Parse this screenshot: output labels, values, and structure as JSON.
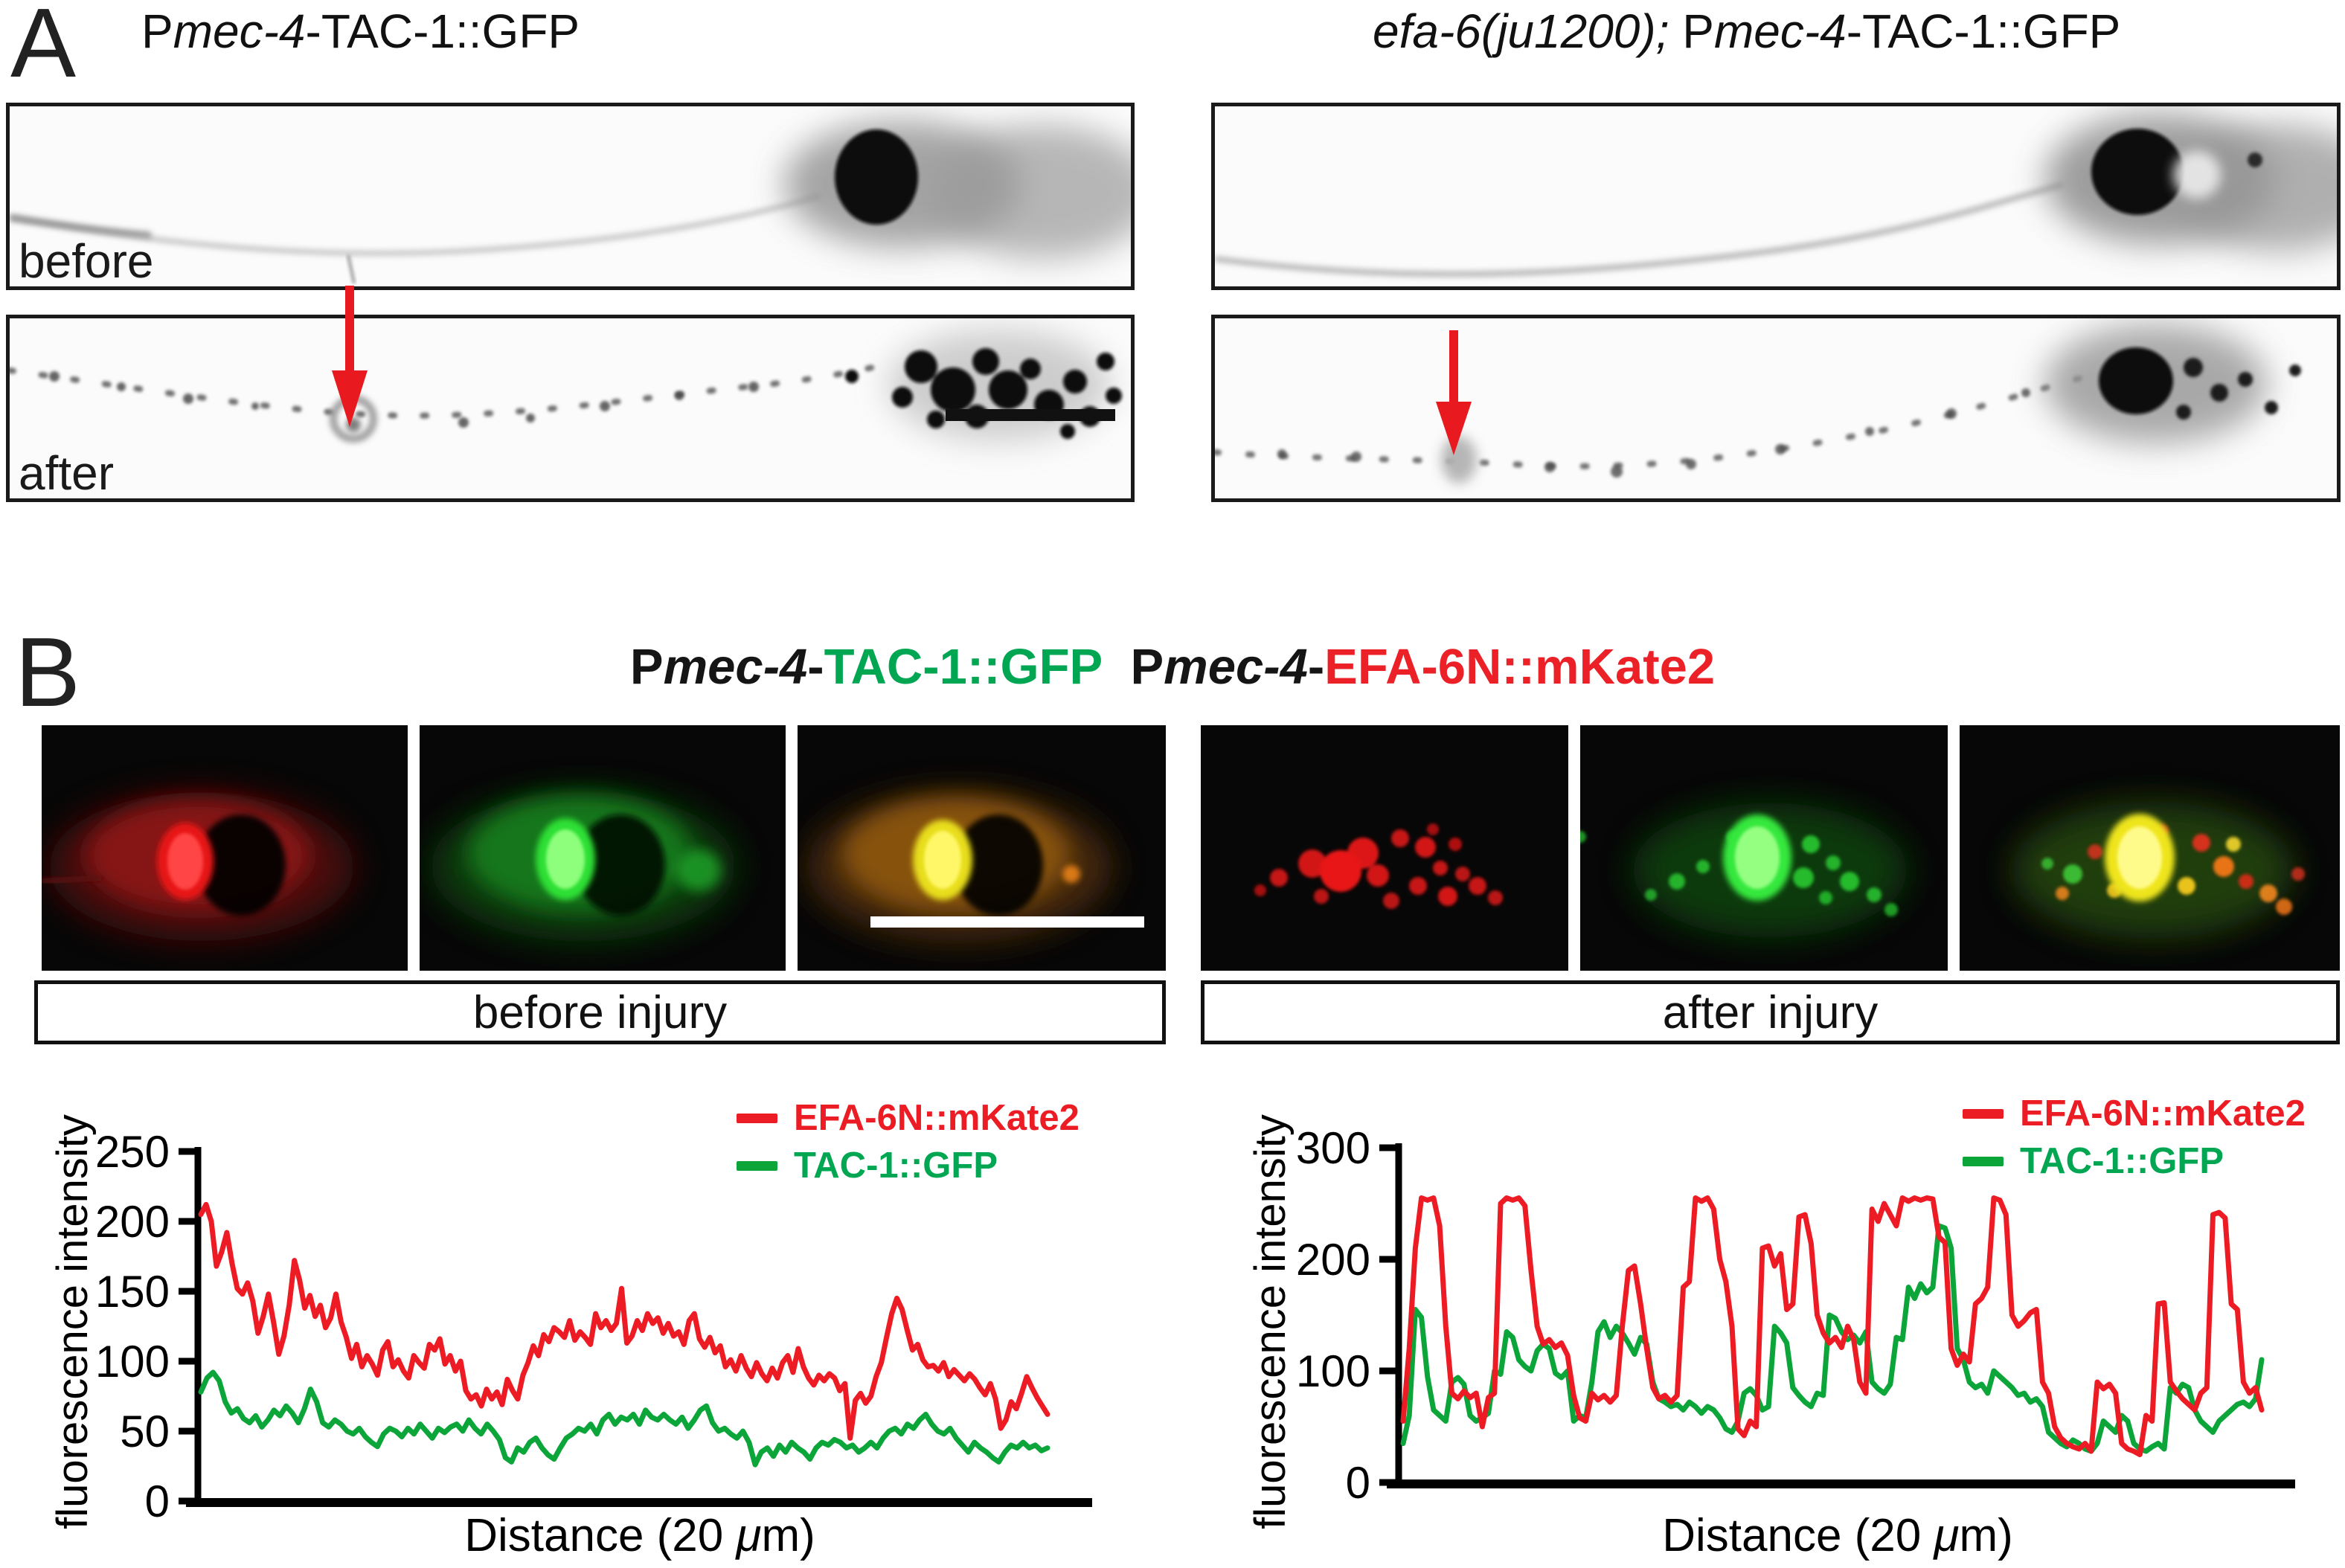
{
  "colors": {
    "accent_red": "#ec1c24",
    "accent_green": "#00a651",
    "arrow_red": "#e8191f",
    "chart_red": "#ed1c24",
    "chart_green": "#0ca53a"
  },
  "panel_a": {
    "label": "A",
    "title_left": {
      "p": "P",
      "gene": "mec-4",
      "rest": "-TAC-1::GFP"
    },
    "title_right": {
      "allele": "efa-6(ju1200);",
      "p": " P",
      "gene": "mec-4",
      "rest": "-TAC-1::GFP"
    },
    "before_label": "before",
    "after_label": "after"
  },
  "panel_b": {
    "label": "B",
    "header": {
      "p1": "P",
      "gene1": "mec-4",
      "dash1": "-",
      "gfp": "TAC-1::GFP",
      "gap": "  ",
      "p2": "P",
      "gene2": "mec-4",
      "dash2": "-",
      "mkate": "EFA-6N::mKate2"
    },
    "before_box": "before injury",
    "after_box": "after injury"
  },
  "chart_data": [
    {
      "type": "line",
      "title": "before injury line scan",
      "ylabel": "fluorescence intensity",
      "xlabel": "Distance (20 μm)",
      "xlabel_parts": {
        "pre": "Distance (20 ",
        "mu": "μ",
        "post": "m)"
      },
      "ylim": [
        0,
        250
      ],
      "yticks": [
        0,
        50,
        100,
        150,
        200,
        250
      ],
      "grid": false,
      "legend_position": "top-right",
      "legend": [
        {
          "label": "EFA-6N::mKate2",
          "color": "#ec1c24"
        },
        {
          "label": "TAC-1::GFP",
          "color": "#00a651"
        }
      ],
      "series": [
        {
          "name": "EFA-6N::mKate2",
          "color": "#ed1c24",
          "values": [
            205,
            212,
            200,
            168,
            178,
            192,
            170,
            152,
            148,
            156,
            143,
            120,
            132,
            148,
            128,
            105,
            118,
            140,
            172,
            158,
            138,
            147,
            132,
            140,
            124,
            131,
            148,
            128,
            117,
            102,
            112,
            96,
            104,
            98,
            90,
            108,
            114,
            96,
            101,
            93,
            88,
            104,
            99,
            95,
            112,
            108,
            116,
            98,
            104,
            93,
            100,
            79,
            73,
            76,
            68,
            80,
            73,
            78,
            69,
            87,
            79,
            73,
            90,
            99,
            111,
            104,
            119,
            114,
            124,
            121,
            117,
            129,
            115,
            121,
            117,
            112,
            134,
            124,
            129,
            122,
            127,
            152,
            113,
            118,
            129,
            122,
            134,
            127,
            131,
            120,
            127,
            118,
            121,
            112,
            129,
            134,
            116,
            110,
            117,
            106,
            111,
            96,
            101,
            93,
            104,
            95,
            89,
            99,
            91,
            86,
            95,
            88,
            99,
            104,
            92,
            109,
            96,
            88,
            83,
            90,
            86,
            91,
            88,
            79,
            84,
            45,
            72,
            77,
            70,
            75,
            89,
            99,
            117,
            134,
            145,
            137,
            122,
            108,
            112,
            101,
            96,
            97,
            93,
            99,
            89,
            94,
            90,
            86,
            91,
            87,
            81,
            76,
            84,
            73,
            52,
            58,
            71,
            66,
            77,
            89,
            81,
            74,
            68,
            62
          ]
        },
        {
          "name": "TAC-1::GFP",
          "color": "#0ca53a",
          "values": [
            78,
            88,
            92,
            86,
            71,
            63,
            66,
            59,
            56,
            61,
            53,
            58,
            65,
            61,
            68,
            63,
            56,
            66,
            80,
            71,
            56,
            53,
            58,
            55,
            50,
            48,
            52,
            46,
            42,
            39,
            48,
            52,
            50,
            46,
            52,
            48,
            55,
            50,
            45,
            52,
            49,
            53,
            55,
            50,
            58,
            52,
            48,
            55,
            50,
            44,
            31,
            28,
            38,
            35,
            42,
            45,
            38,
            33,
            30,
            38,
            45,
            48,
            52,
            50,
            55,
            48,
            58,
            62,
            55,
            60,
            58,
            62,
            55,
            65,
            60,
            58,
            62,
            58,
            55,
            60,
            52,
            58,
            65,
            68,
            56,
            50,
            52,
            48,
            45,
            50,
            42,
            26,
            35,
            38,
            32,
            40,
            35,
            42,
            38,
            35,
            30,
            38,
            42,
            40,
            44,
            42,
            38,
            40,
            35,
            38,
            42,
            38,
            45,
            50,
            52,
            48,
            55,
            52,
            58,
            62,
            55,
            50,
            48,
            52,
            45,
            40,
            35,
            42,
            38,
            35,
            31,
            28,
            35,
            40,
            38,
            42,
            38,
            40,
            36,
            38
          ]
        }
      ]
    },
    {
      "type": "line",
      "title": "after injury line scan",
      "ylabel": "fluorescence intensity",
      "xlabel": "Distance (20 μm)",
      "xlabel_parts": {
        "pre": "Distance (20 ",
        "mu": "μ",
        "post": "m)"
      },
      "ylim": [
        0,
        300
      ],
      "yticks": [
        0,
        100,
        200,
        300
      ],
      "grid": false,
      "legend_position": "top-right",
      "legend": [
        {
          "label": "EFA-6N::mKate2",
          "color": "#ec1c24"
        },
        {
          "label": "TAC-1::GFP",
          "color": "#00a651"
        }
      ],
      "series": [
        {
          "name": "EFA-6N::mKate2",
          "color": "#ed1c24",
          "values": [
            55,
            120,
            210,
            255,
            253,
            255,
            230,
            140,
            80,
            75,
            82,
            76,
            80,
            50,
            76,
            80,
            250,
            255,
            253,
            255,
            248,
            190,
            140,
            124,
            128,
            121,
            125,
            114,
            78,
            58,
            55,
            80,
            74,
            78,
            72,
            78,
            140,
            190,
            194,
            160,
            120,
            85,
            75,
            78,
            72,
            78,
            175,
            180,
            255,
            252,
            255,
            245,
            200,
            180,
            140,
            48,
            42,
            55,
            50,
            210,
            212,
            194,
            205,
            155,
            160,
            238,
            240,
            214,
            150,
            134,
            125,
            130,
            121,
            140,
            128,
            90,
            80,
            245,
            234,
            250,
            240,
            230,
            255,
            252,
            255,
            253,
            255,
            254,
            220,
            215,
            120,
            105,
            115,
            108,
            160,
            165,
            175,
            255,
            253,
            240,
            150,
            140,
            145,
            152,
            155,
            90,
            80,
            50,
            40,
            35,
            32,
            30,
            35,
            28,
            90,
            84,
            88,
            80,
            35,
            30,
            28,
            25,
            60,
            55,
            160,
            161,
            90,
            82,
            75,
            70,
            65,
            80,
            85,
            240,
            242,
            237,
            160,
            155,
            90,
            80,
            85,
            65
          ]
        },
        {
          "name": "TAC-1::GFP",
          "color": "#0ca53a",
          "values": [
            35,
            60,
            155,
            148,
            95,
            65,
            60,
            55,
            90,
            94,
            88,
            60,
            55,
            58,
            62,
            100,
            97,
            135,
            130,
            110,
            104,
            100,
            118,
            124,
            120,
            98,
            94,
            100,
            55,
            60,
            58,
            90,
            135,
            144,
            130,
            140,
            134,
            125,
            115,
            130,
            124,
            90,
            75,
            72,
            68,
            70,
            65,
            72,
            68,
            62,
            68,
            65,
            58,
            48,
            45,
            55,
            80,
            84,
            78,
            65,
            68,
            140,
            134,
            125,
            85,
            78,
            72,
            68,
            80,
            78,
            150,
            147,
            135,
            128,
            132,
            125,
            135,
            90,
            84,
            80,
            88,
            130,
            128,
            175,
            165,
            178,
            170,
            175,
            230,
            228,
            210,
            120,
            110,
            90,
            85,
            88,
            80,
            100,
            95,
            90,
            85,
            78,
            80,
            72,
            75,
            68,
            45,
            40,
            35,
            32,
            38,
            35,
            30,
            28,
            35,
            55,
            50,
            45,
            60,
            55,
            35,
            30,
            28,
            32,
            35,
            30,
            85,
            80,
            88,
            85,
            65,
            55,
            50,
            45,
            55,
            60,
            65,
            70,
            72,
            68,
            75,
            110
          ]
        }
      ]
    }
  ]
}
